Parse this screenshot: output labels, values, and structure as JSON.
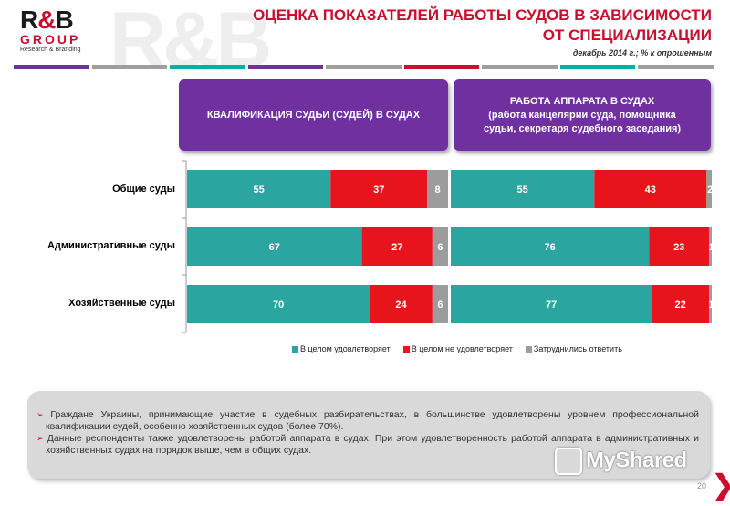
{
  "logo": {
    "main_a": "R",
    "main_amp": "&",
    "main_b": "B",
    "group": "GROUP",
    "sub": "Research & Branding"
  },
  "watermark": "R&B",
  "title": {
    "line1": "ОЦЕНКА ПОКАЗАТЕЛЕЙ РАБОТЫ СУДОВ В ЗАВИСИМОСТИ",
    "line2": "ОТ СПЕЦИАЛИЗАЦИИ"
  },
  "subtitle": "декабрь 2014 г.; % к опрошенным",
  "stripe_colors": [
    "#7030a0",
    "#9e9e9e",
    "#00b0a8",
    "#7030a0",
    "#9e9e9e",
    "#c8102e",
    "#9e9e9e",
    "#00b0a8",
    "#9e9e9e"
  ],
  "panels": {
    "left": {
      "line1": "КВАЛИФИКАЦИЯ СУДЬИ (СУДЕЙ) В СУДАХ"
    },
    "right": {
      "line1": "РАБОТА АППАРАТА В СУДАХ",
      "line2": "(работа канцелярии суда, помощника",
      "line3": "судьи, секретаря судебного заседания)"
    }
  },
  "colors": {
    "satisfied": "#2aa5a0",
    "not_satisfied": "#e8141b",
    "unsure": "#9c9c9c",
    "header_bg": "#7030a0",
    "accent": "#c8102e"
  },
  "chart_data": [
    {
      "type": "bar",
      "orientation": "horizontal",
      "stacked": true,
      "title": "КВАЛИФИКАЦИЯ СУДЬИ (СУДЕЙ) В СУДАХ",
      "categories": [
        "Общие суды",
        "Административные суды",
        "Хозяйственные суды"
      ],
      "series": [
        {
          "name": "В целом удовлетворяет",
          "values": [
            55,
            67,
            70
          ]
        },
        {
          "name": "В целом не удовлетворяет",
          "values": [
            37,
            27,
            24
          ]
        },
        {
          "name": "Затруднились ответить",
          "values": [
            8,
            6,
            6
          ]
        }
      ],
      "xlim": [
        0,
        100
      ],
      "legend": "bottom"
    },
    {
      "type": "bar",
      "orientation": "horizontal",
      "stacked": true,
      "title": "РАБОТА АППАРАТА В СУДАХ",
      "categories": [
        "Общие суды",
        "Административные суды",
        "Хозяйственные суды"
      ],
      "series": [
        {
          "name": "В целом удовлетворяет",
          "values": [
            55,
            76,
            77
          ]
        },
        {
          "name": "В целом не удовлетворяет",
          "values": [
            43,
            23,
            22
          ]
        },
        {
          "name": "Затруднились ответить",
          "values": [
            2,
            1,
            1
          ]
        }
      ],
      "xlim": [
        0,
        100
      ],
      "legend": "bottom"
    }
  ],
  "legend": [
    "В целом удовлетворяет",
    "В целом не удовлетворяет",
    "Затруднились ответить"
  ],
  "notes": [
    "Граждане Украины, принимающие участие в судебных разбирательствах, в большинстве удовлетворены уровнем профессиональной квалификации судей, особенно хозяйственных судов (более 70%).",
    "Данные респонденты также удовлетворены работой аппарата в судах. При этом удовлетворенность работой аппарата в административных и хозяйственных судах на порядок выше, чем в общих судах."
  ],
  "note_bullet": "➢",
  "myshare": "MyShared",
  "page_number": "20",
  "next_glyph": "❯"
}
